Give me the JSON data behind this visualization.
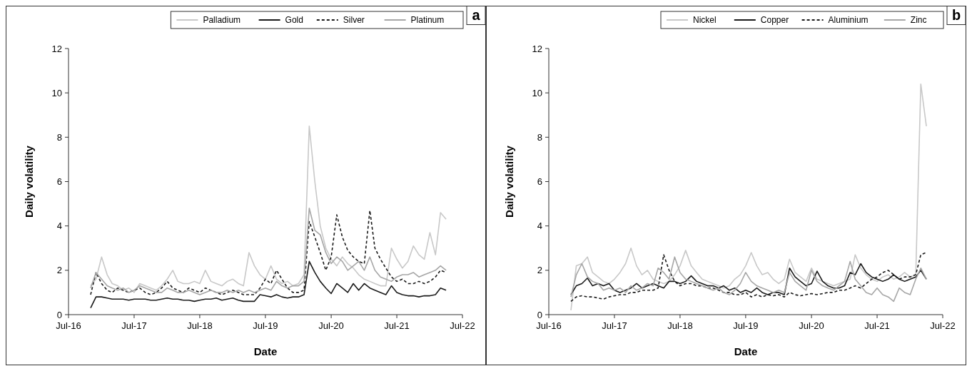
{
  "chart_data": [
    {
      "type": "line",
      "xlabel": "Date",
      "ylabel": "Daily volatility",
      "annotations": [
        "a"
      ],
      "legend": "top right",
      "grid": false,
      "xlim": [
        "2016-07",
        "2022-07"
      ],
      "xticks": [
        {
          "value": "2016-07",
          "label": "Jul-16"
        },
        {
          "value": "2017-07",
          "label": "Jul-17"
        },
        {
          "value": "2018-07",
          "label": "Jul-18"
        },
        {
          "value": "2019-07",
          "label": "Jul-19"
        },
        {
          "value": "2020-07",
          "label": "Jul-20"
        },
        {
          "value": "2021-07",
          "label": "Jul-21"
        },
        {
          "value": "2022-07",
          "label": "Jul-22"
        }
      ],
      "ylim": [
        0,
        12
      ],
      "yticks": [
        0,
        2,
        4,
        6,
        8,
        10,
        12
      ],
      "x": [
        "2016-11",
        "2016-12",
        "2017-01",
        "2017-02",
        "2017-03",
        "2017-04",
        "2017-05",
        "2017-06",
        "2017-07",
        "2017-08",
        "2017-09",
        "2017-10",
        "2017-11",
        "2017-12",
        "2018-01",
        "2018-02",
        "2018-03",
        "2018-04",
        "2018-05",
        "2018-06",
        "2018-07",
        "2018-08",
        "2018-09",
        "2018-10",
        "2018-11",
        "2018-12",
        "2019-01",
        "2019-02",
        "2019-03",
        "2019-04",
        "2019-05",
        "2019-06",
        "2019-07",
        "2019-08",
        "2019-09",
        "2019-10",
        "2019-11",
        "2019-12",
        "2020-01",
        "2020-02",
        "2020-03",
        "2020-04",
        "2020-05",
        "2020-06",
        "2020-07",
        "2020-08",
        "2020-09",
        "2020-10",
        "2020-11",
        "2020-12",
        "2021-01",
        "2021-02",
        "2021-03",
        "2021-04",
        "2021-05",
        "2021-06",
        "2021-07",
        "2021-08",
        "2021-09",
        "2021-10",
        "2021-11",
        "2021-12",
        "2022-01",
        "2022-02",
        "2022-03",
        "2022-04"
      ],
      "series": [
        {
          "name": "Palladium",
          "color": "#c8c8c8",
          "line_style": "solid",
          "values": [
            1.3,
            1.6,
            2.6,
            1.8,
            1.4,
            1.3,
            1.1,
            1.2,
            1.0,
            1.4,
            1.3,
            1.2,
            1.1,
            1.3,
            1.6,
            2.0,
            1.5,
            1.4,
            1.4,
            1.5,
            1.4,
            2.0,
            1.5,
            1.4,
            1.3,
            1.5,
            1.6,
            1.4,
            1.3,
            2.8,
            2.2,
            1.8,
            1.6,
            2.2,
            1.6,
            1.4,
            1.5,
            1.3,
            1.4,
            1.8,
            8.5,
            6.0,
            4.0,
            3.0,
            2.5,
            2.2,
            2.6,
            2.3,
            2.1,
            1.8,
            1.6,
            1.5,
            1.4,
            1.3,
            1.3,
            3.0,
            2.5,
            2.1,
            2.4,
            3.1,
            2.7,
            2.5,
            3.7,
            2.7,
            4.6,
            4.3
          ]
        },
        {
          "name": "Gold",
          "color": "#1a1a1a",
          "line_style": "solid",
          "values": [
            0.3,
            0.8,
            0.8,
            0.75,
            0.7,
            0.7,
            0.7,
            0.65,
            0.7,
            0.7,
            0.7,
            0.65,
            0.65,
            0.7,
            0.75,
            0.7,
            0.7,
            0.65,
            0.65,
            0.6,
            0.65,
            0.7,
            0.7,
            0.75,
            0.65,
            0.7,
            0.75,
            0.65,
            0.6,
            0.6,
            0.6,
            0.9,
            0.85,
            0.8,
            0.9,
            0.8,
            0.75,
            0.8,
            0.8,
            0.9,
            2.4,
            1.9,
            1.5,
            1.2,
            0.95,
            1.4,
            1.2,
            1.0,
            1.4,
            1.1,
            1.4,
            1.2,
            1.1,
            1.0,
            0.9,
            1.3,
            1.0,
            0.9,
            0.85,
            0.85,
            0.8,
            0.85,
            0.85,
            0.9,
            1.2,
            1.1
          ]
        },
        {
          "name": "Silver",
          "color": "#1a1a1a",
          "line_style": "dashed",
          "values": [
            0.9,
            1.9,
            1.4,
            1.1,
            1.0,
            1.2,
            1.1,
            1.0,
            1.1,
            1.2,
            1.0,
            0.9,
            1.0,
            1.2,
            1.5,
            1.2,
            1.1,
            1.0,
            1.2,
            1.1,
            1.0,
            1.2,
            1.1,
            1.0,
            0.9,
            1.0,
            1.1,
            1.0,
            0.9,
            0.9,
            0.9,
            1.2,
            1.6,
            1.4,
            2.0,
            1.6,
            1.2,
            1.0,
            1.0,
            1.1,
            4.2,
            3.5,
            2.8,
            2.0,
            2.6,
            4.5,
            3.5,
            2.9,
            2.6,
            2.4,
            2.3,
            4.7,
            3.0,
            2.5,
            2.1,
            1.7,
            1.5,
            1.6,
            1.4,
            1.4,
            1.5,
            1.4,
            1.5,
            1.7,
            2.0,
            1.9
          ]
        },
        {
          "name": "Platinum",
          "color": "#a6a6a6",
          "line_style": "solid",
          "values": [
            1.2,
            1.9,
            1.6,
            1.3,
            1.2,
            1.1,
            1.2,
            1.0,
            1.1,
            1.3,
            1.2,
            1.1,
            1.0,
            1.0,
            1.2,
            1.1,
            1.0,
            1.0,
            1.1,
            1.0,
            0.9,
            1.0,
            1.1,
            1.0,
            1.0,
            1.1,
            1.0,
            1.1,
            1.0,
            1.1,
            1.0,
            1.1,
            1.2,
            1.1,
            1.5,
            1.3,
            1.2,
            1.3,
            1.3,
            1.5,
            4.8,
            3.8,
            3.6,
            2.8,
            2.3,
            2.6,
            2.4,
            2.0,
            2.2,
            2.4,
            2.0,
            2.6,
            2.0,
            1.7,
            1.6,
            1.5,
            1.7,
            1.8,
            1.8,
            1.9,
            1.7,
            1.8,
            1.9,
            2.0,
            2.2,
            2.0
          ]
        }
      ]
    },
    {
      "type": "line",
      "xlabel": "Date",
      "ylabel": "Daily volatility",
      "annotations": [
        "b"
      ],
      "legend": "top right",
      "grid": false,
      "xlim": [
        "2016-07",
        "2022-07"
      ],
      "xticks": [
        {
          "value": "2016-07",
          "label": "Jul-16"
        },
        {
          "value": "2017-07",
          "label": "Jul-17"
        },
        {
          "value": "2018-07",
          "label": "Jul-18"
        },
        {
          "value": "2019-07",
          "label": "Jul-19"
        },
        {
          "value": "2020-07",
          "label": "Jul-20"
        },
        {
          "value": "2021-07",
          "label": "Jul-21"
        },
        {
          "value": "2022-07",
          "label": "Jul-22"
        }
      ],
      "ylim": [
        0,
        12
      ],
      "yticks": [
        0,
        2,
        4,
        6,
        8,
        10,
        12
      ],
      "x": [
        "2016-11",
        "2016-12",
        "2017-01",
        "2017-02",
        "2017-03",
        "2017-04",
        "2017-05",
        "2017-06",
        "2017-07",
        "2017-08",
        "2017-09",
        "2017-10",
        "2017-11",
        "2017-12",
        "2018-01",
        "2018-02",
        "2018-03",
        "2018-04",
        "2018-05",
        "2018-06",
        "2018-07",
        "2018-08",
        "2018-09",
        "2018-10",
        "2018-11",
        "2018-12",
        "2019-01",
        "2019-02",
        "2019-03",
        "2019-04",
        "2019-05",
        "2019-06",
        "2019-07",
        "2019-08",
        "2019-09",
        "2019-10",
        "2019-11",
        "2019-12",
        "2020-01",
        "2020-02",
        "2020-03",
        "2020-04",
        "2020-05",
        "2020-06",
        "2020-07",
        "2020-08",
        "2020-09",
        "2020-10",
        "2020-11",
        "2020-12",
        "2021-01",
        "2021-02",
        "2021-03",
        "2021-04",
        "2021-05",
        "2021-06",
        "2021-07",
        "2021-08",
        "2021-09",
        "2021-10",
        "2021-11",
        "2021-12",
        "2022-01",
        "2022-02",
        "2022-03",
        "2022-04"
      ],
      "series": [
        {
          "name": "Nickel",
          "color": "#c8c8c8",
          "line_style": "solid",
          "values": [
            0.2,
            2.2,
            2.3,
            2.6,
            1.9,
            1.7,
            1.5,
            1.4,
            1.6,
            1.9,
            2.3,
            3.0,
            2.2,
            1.8,
            2.0,
            1.6,
            1.5,
            1.4,
            1.5,
            1.8,
            2.2,
            2.9,
            2.2,
            1.9,
            1.6,
            1.5,
            1.4,
            1.3,
            1.2,
            1.3,
            1.6,
            1.8,
            2.2,
            2.8,
            2.2,
            1.8,
            1.9,
            1.6,
            1.4,
            1.6,
            2.5,
            1.9,
            1.7,
            1.5,
            2.1,
            1.6,
            1.5,
            1.4,
            1.3,
            1.4,
            1.5,
            1.6,
            2.7,
            2.1,
            1.8,
            1.6,
            1.5,
            1.7,
            1.8,
            1.6,
            1.7,
            1.9,
            1.7,
            1.8,
            10.4,
            8.5
          ]
        },
        {
          "name": "Copper",
          "color": "#1a1a1a",
          "line_style": "solid",
          "values": [
            0.9,
            1.3,
            1.4,
            1.65,
            1.3,
            1.4,
            1.3,
            1.4,
            1.1,
            1.0,
            1.1,
            1.2,
            1.4,
            1.2,
            1.3,
            1.4,
            1.3,
            1.2,
            1.5,
            1.5,
            1.4,
            1.5,
            1.75,
            1.5,
            1.4,
            1.3,
            1.3,
            1.2,
            1.3,
            1.1,
            1.2,
            1.0,
            1.1,
            1.0,
            1.2,
            1.0,
            0.9,
            1.0,
            1.0,
            0.9,
            2.1,
            1.7,
            1.5,
            1.3,
            1.4,
            1.96,
            1.5,
            1.3,
            1.2,
            1.2,
            1.3,
            1.9,
            1.8,
            2.3,
            1.9,
            1.7,
            1.6,
            1.5,
            1.6,
            1.8,
            1.6,
            1.5,
            1.6,
            1.7,
            2.0,
            1.6
          ]
        },
        {
          "name": "Aluminium",
          "color": "#1a1a1a",
          "line_style": "dashed",
          "values": [
            0.6,
            0.8,
            0.85,
            0.8,
            0.8,
            0.75,
            0.7,
            0.8,
            0.85,
            0.9,
            0.9,
            1.0,
            1.0,
            1.1,
            1.1,
            1.1,
            1.2,
            2.7,
            2.0,
            1.5,
            1.3,
            1.4,
            1.4,
            1.3,
            1.3,
            1.2,
            1.2,
            1.1,
            1.0,
            1.0,
            0.9,
            0.9,
            1.0,
            0.8,
            0.9,
            0.8,
            0.9,
            0.85,
            0.9,
            0.8,
            1.0,
            0.9,
            0.85,
            0.9,
            0.95,
            0.9,
            0.95,
            1.0,
            1.0,
            1.1,
            1.1,
            1.2,
            1.3,
            1.2,
            1.4,
            1.6,
            1.7,
            1.9,
            2.0,
            1.8,
            1.6,
            1.7,
            1.7,
            1.8,
            2.7,
            2.8
          ]
        },
        {
          "name": "Zinc",
          "color": "#a6a6a6",
          "line_style": "solid",
          "values": [
            0.8,
            1.8,
            2.3,
            1.7,
            1.5,
            1.4,
            1.1,
            1.2,
            1.1,
            1.2,
            1.0,
            1.3,
            1.1,
            1.2,
            1.4,
            1.3,
            2.1,
            1.9,
            1.6,
            2.6,
            1.9,
            1.6,
            1.5,
            1.4,
            1.3,
            1.2,
            1.1,
            1.2,
            1.0,
            0.9,
            1.1,
            1.4,
            1.9,
            1.5,
            1.3,
            1.2,
            1.1,
            1.0,
            1.1,
            1.0,
            1.9,
            1.5,
            1.3,
            1.1,
            2.0,
            1.5,
            1.3,
            1.2,
            1.1,
            1.3,
            1.5,
            2.4,
            1.6,
            1.3,
            1.0,
            0.9,
            1.2,
            0.9,
            0.8,
            0.6,
            1.2,
            1.0,
            0.9,
            1.6,
            2.1,
            1.6
          ]
        }
      ]
    }
  ]
}
